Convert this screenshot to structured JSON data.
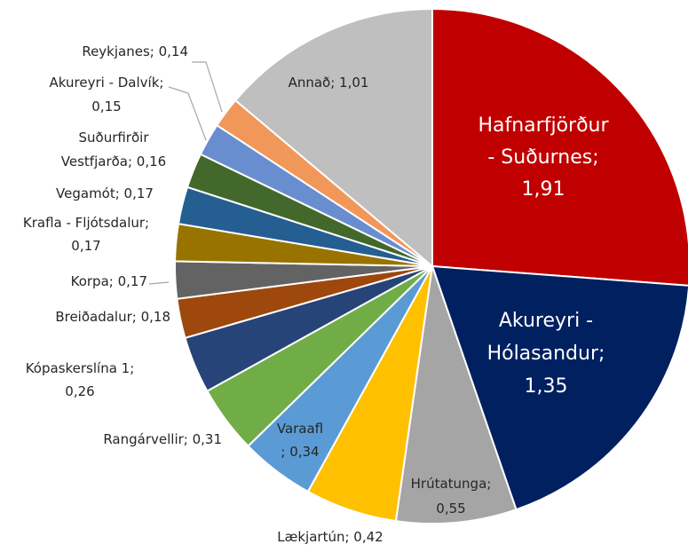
{
  "chart_data": {
    "type": "pie",
    "values": [
      1.91,
      1.35,
      0.55,
      0.42,
      0.34,
      0.31,
      0.26,
      0.18,
      0.17,
      0.17,
      0.17,
      0.16,
      0.15,
      0.14,
      1.01
    ],
    "value_labels": [
      [
        "Hafnarfjörður",
        "- Suðurnes;",
        "1,91"
      ],
      [
        "Akureyri -",
        "Hólasandur;",
        "1,35"
      ],
      [
        "Hrútatunga;",
        "0,55"
      ],
      [
        "Lækjartún; 0,42"
      ],
      [
        "Varaafl",
        "; 0,34"
      ],
      [
        "Rangárvellir; 0,31"
      ],
      [
        "Kópaskerslína 1;",
        "0,26"
      ],
      [
        "Breiðadalur; 0,18"
      ],
      [
        "Korpa; 0,17"
      ],
      [
        "Krafla - Fljótsdalur;",
        "0,17"
      ],
      [
        "Vegamót; 0,17"
      ],
      [
        "Suðurfirðir",
        "Vestfjarða; 0,16"
      ],
      [
        "Akureyri - Dalvík;",
        "0,15"
      ],
      [
        "Reykjanes; 0,14"
      ],
      [
        "Annað; 1,01"
      ]
    ],
    "colors": [
      "#c00000",
      "#002060",
      "#a5a5a5",
      "#ffc000",
      "#5b9bd5",
      "#70ad47",
      "#264478",
      "#9e480e",
      "#636363",
      "#997300",
      "#255e91",
      "#43682b",
      "#698ed0",
      "#f1975a",
      "#bfbfbf"
    ]
  }
}
